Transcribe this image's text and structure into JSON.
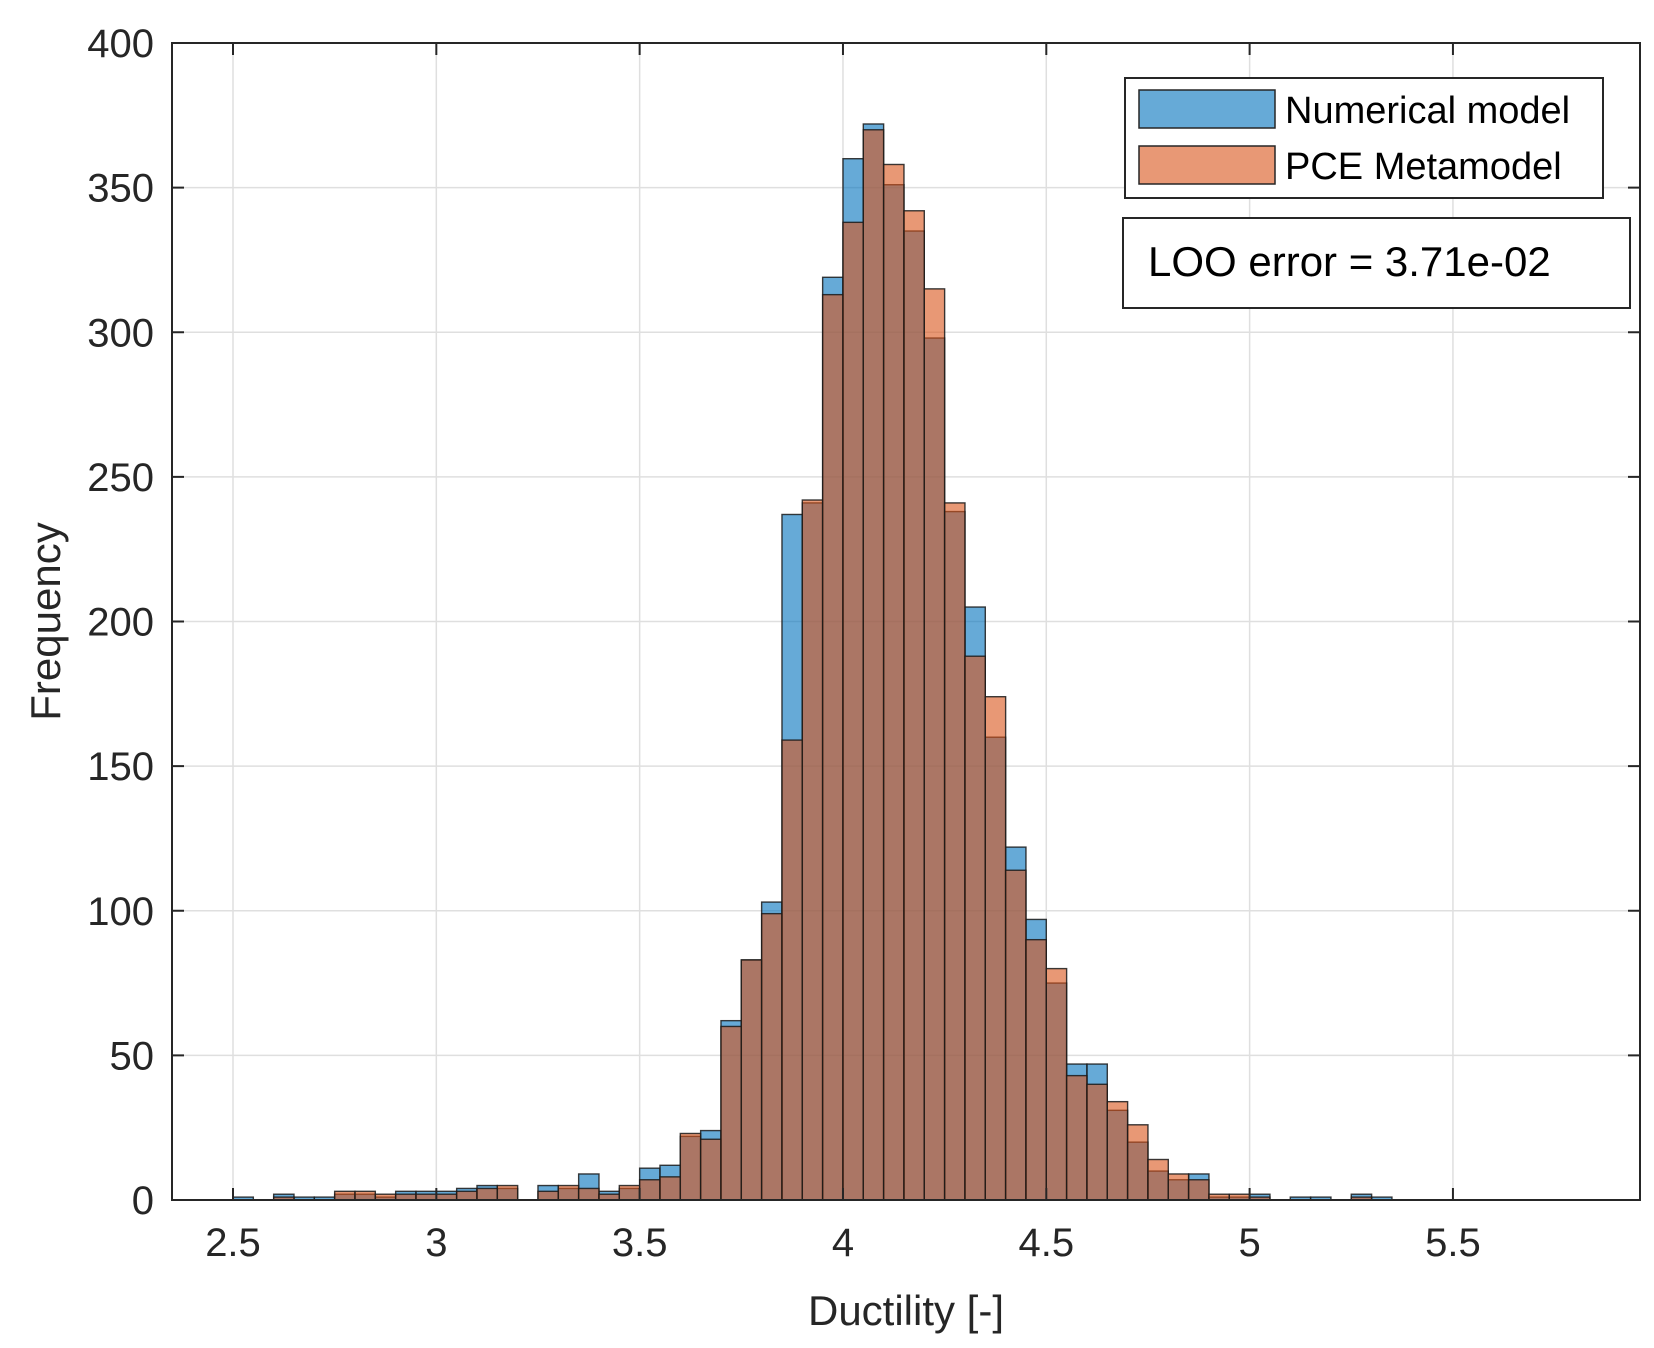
{
  "chart_data": {
    "type": "bar",
    "subtype": "overlaid-histogram",
    "xlabel": "Ductility [-]",
    "ylabel": "Frequency",
    "xlim": [
      2.35,
      5.96
    ],
    "ylim": [
      0,
      400
    ],
    "xticks": [
      2.5,
      3,
      3.5,
      4,
      4.5,
      5,
      5.5
    ],
    "xtick_labels": [
      "2.5",
      "3",
      "3.5",
      "4",
      "4.5",
      "5",
      "5.5"
    ],
    "yticks": [
      0,
      50,
      100,
      150,
      200,
      250,
      300,
      350,
      400
    ],
    "ytick_labels": [
      "0",
      "50",
      "100",
      "150",
      "200",
      "250",
      "300",
      "350",
      "400"
    ],
    "grid": true,
    "legend_position": "top-right",
    "bin_start": 2.5,
    "bin_width": 0.05,
    "series": [
      {
        "name": "Numerical model",
        "color": "#0072BD",
        "values": [
          1,
          0,
          2,
          1,
          1,
          2,
          2,
          1,
          3,
          3,
          3,
          4,
          5,
          4,
          0,
          5,
          4,
          9,
          3,
          4,
          11,
          12,
          22,
          24,
          62,
          83,
          103,
          237,
          241,
          319,
          360,
          372,
          351,
          335,
          298,
          238,
          205,
          160,
          122,
          97,
          75,
          47,
          47,
          31,
          20,
          10,
          7,
          9,
          1,
          1,
          2,
          0,
          1,
          1,
          0,
          2,
          1
        ]
      },
      {
        "name": "PCE Metamodel",
        "color": "#D95319",
        "values": [
          0,
          0,
          1,
          0,
          0,
          3,
          3,
          2,
          2,
          2,
          2,
          3,
          4,
          5,
          0,
          3,
          5,
          4,
          2,
          5,
          7,
          8,
          23,
          21,
          60,
          83,
          99,
          159,
          242,
          313,
          338,
          370,
          358,
          342,
          315,
          241,
          188,
          174,
          114,
          90,
          80,
          43,
          40,
          34,
          26,
          14,
          9,
          7,
          2,
          2,
          1,
          0,
          0,
          0,
          0,
          1,
          0
        ]
      }
    ],
    "annotation": "LOO error = 3.71e-02"
  }
}
